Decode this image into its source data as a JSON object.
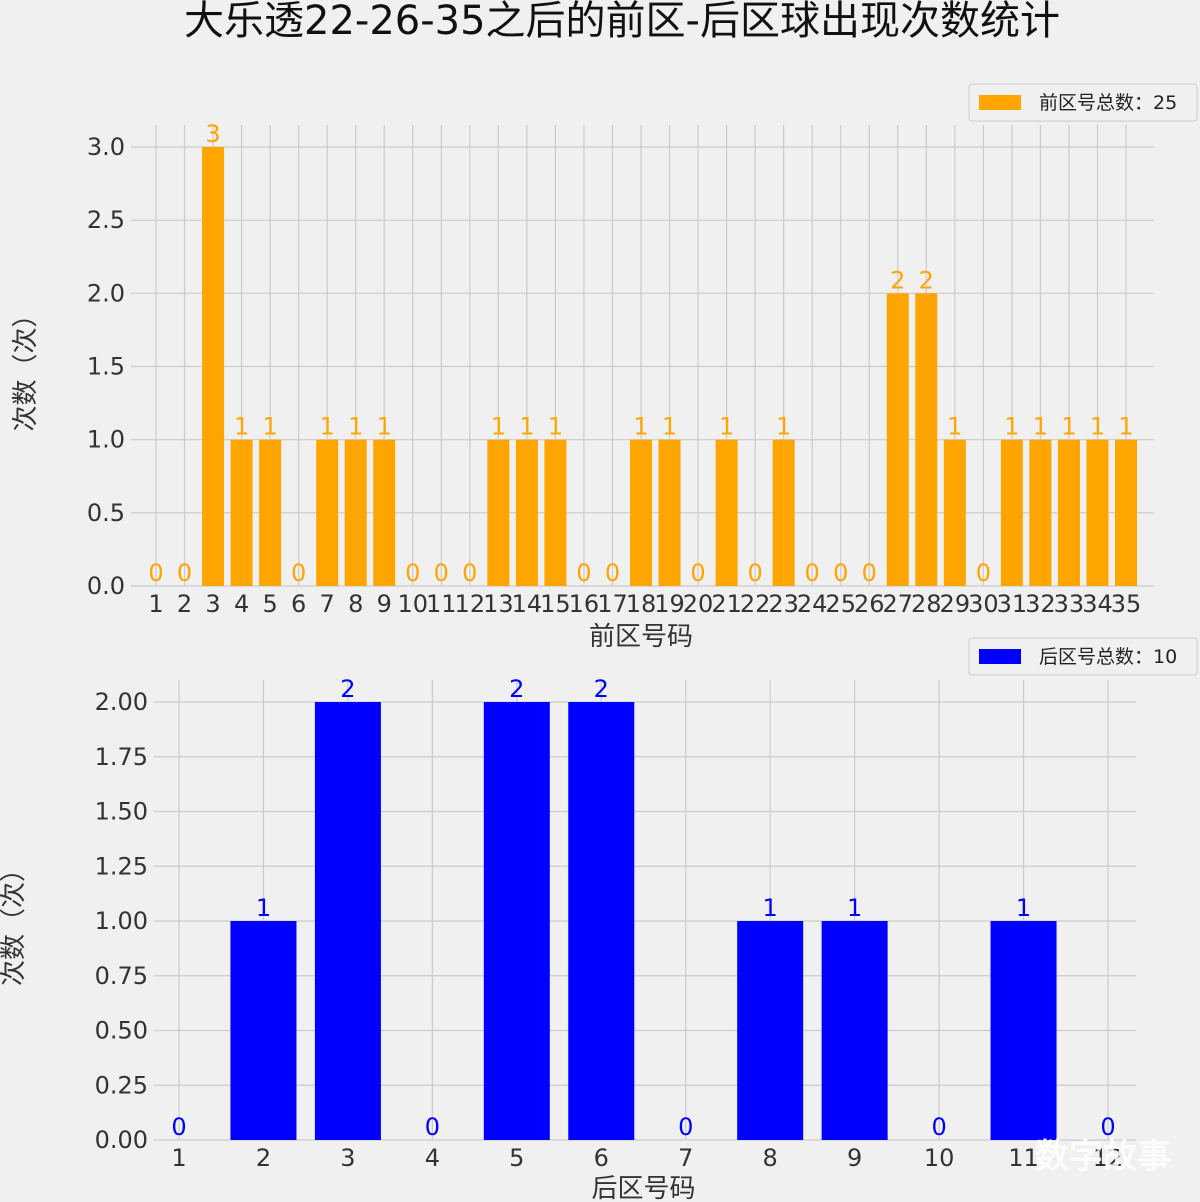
{
  "title": "大乐透22-26-35之后的前区-后区球出现次数统计",
  "watermark": "数字故事",
  "chart_data": [
    {
      "type": "bar",
      "color": "#ffa500",
      "legend": "前区号总数：25",
      "legend_position": "top-right",
      "xlabel": "前区号码",
      "ylabel": "次数（次）",
      "grid": true,
      "ylim": [
        0,
        3.0
      ],
      "yticks": [
        "0.0",
        "0.5",
        "1.0",
        "1.5",
        "2.0",
        "2.5",
        "3.0"
      ],
      "categories": [
        "1",
        "2",
        "3",
        "4",
        "5",
        "6",
        "7",
        "8",
        "9",
        "10",
        "11",
        "12",
        "13",
        "14",
        "15",
        "16",
        "17",
        "18",
        "19",
        "20",
        "21",
        "22",
        "23",
        "24",
        "25",
        "26",
        "27",
        "28",
        "29",
        "30",
        "31",
        "32",
        "33",
        "34",
        "35"
      ],
      "values": [
        0,
        0,
        3,
        1,
        1,
        0,
        1,
        1,
        1,
        0,
        0,
        0,
        1,
        1,
        1,
        0,
        0,
        1,
        1,
        0,
        1,
        0,
        1,
        0,
        0,
        0,
        2,
        2,
        1,
        0,
        1,
        1,
        1,
        1,
        1
      ]
    },
    {
      "type": "bar",
      "color": "#0000ff",
      "legend": "后区号总数：10",
      "legend_position": "top-right",
      "xlabel": "后区号码",
      "ylabel": "次数（次）",
      "grid": true,
      "ylim": [
        0,
        2.0
      ],
      "yticks": [
        "0.00",
        "0.25",
        "0.50",
        "0.75",
        "1.00",
        "1.25",
        "1.50",
        "1.75",
        "2.00"
      ],
      "categories": [
        "1",
        "2",
        "3",
        "4",
        "5",
        "6",
        "7",
        "8",
        "9",
        "10",
        "11",
        "12"
      ],
      "values": [
        0,
        1,
        2,
        0,
        2,
        2,
        0,
        1,
        1,
        0,
        1,
        0
      ]
    }
  ]
}
